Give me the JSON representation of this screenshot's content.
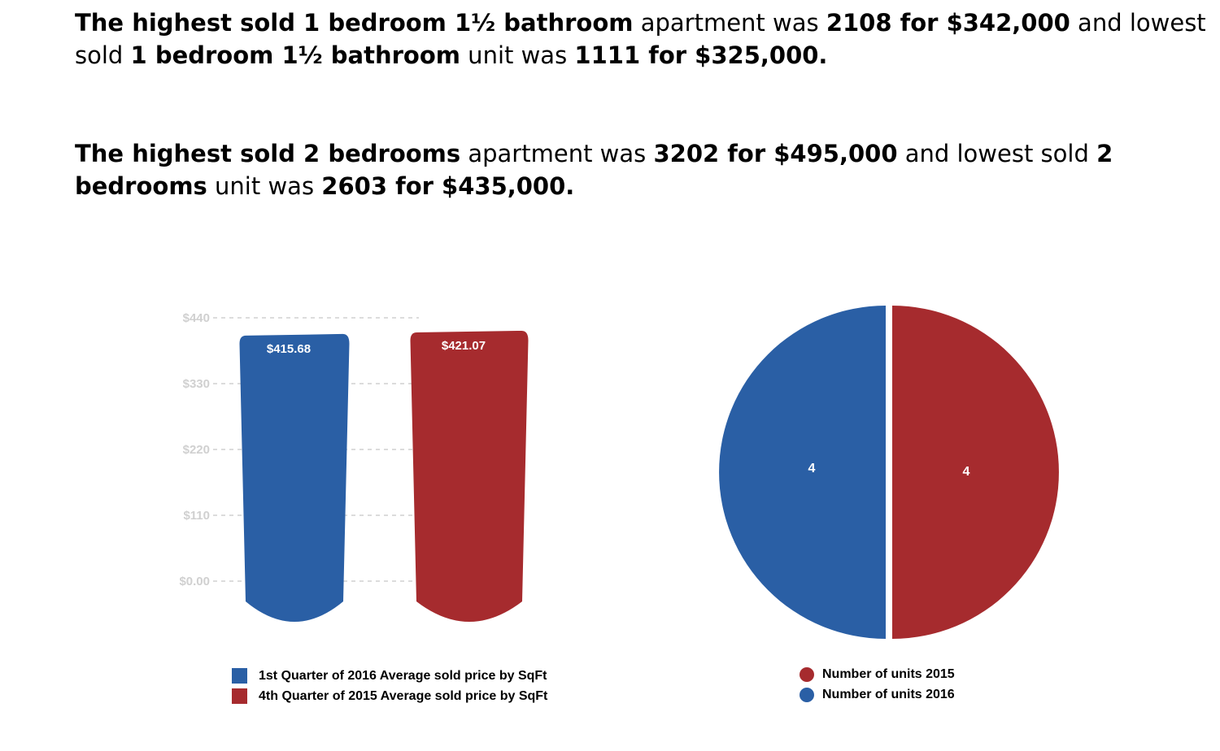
{
  "text": {
    "p1": {
      "a": "The highest sold 1 bedroom 1½ bathroom",
      "b": " apartment was ",
      "c": "2108 for $342,000",
      "d": " and lowest sold ",
      "e": "1 bedroom 1½ bathroom",
      "f": " unit was ",
      "g": "1111 for $325,000."
    },
    "p2": {
      "a": "The highest sold 2 bedrooms",
      "b": " apartment was ",
      "c": "3202 for $495,000",
      "d": " and lowest sold ",
      "e": "2 bedrooms",
      "f": " unit was ",
      "g": "2603 for $435,000."
    }
  },
  "colors": {
    "blue": "#2a5fa5",
    "red": "#a62b2e",
    "grid": "#d0d0d0"
  },
  "chart_data": [
    {
      "type": "bar",
      "categories": [
        "1st Quarter of 2016 Average sold price by SqFt",
        "4th Quarter of 2015 Average sold price by SqFt"
      ],
      "values": [
        415.68,
        421.07
      ],
      "value_labels": [
        "$415.68",
        "$421.07"
      ],
      "yticks": [
        0,
        110,
        220,
        330,
        440
      ],
      "ytick_labels": [
        "$0.00",
        "$110",
        "$220",
        "$330",
        "$440"
      ],
      "ylim": [
        0,
        440
      ],
      "grid": true,
      "legend": [
        {
          "label": "1st Quarter of 2016 Average sold price by SqFt",
          "color": "#2a5fa5"
        },
        {
          "label": "4th Quarter of 2015 Average sold price by SqFt",
          "color": "#a62b2e"
        }
      ]
    },
    {
      "type": "pie",
      "slices": [
        {
          "label": "Number of units 2016",
          "value": 4,
          "color": "#2a5fa5"
        },
        {
          "label": "Number of units 2015",
          "value": 4,
          "color": "#a62b2e"
        }
      ],
      "legend": [
        {
          "label": "Number of units 2015",
          "color": "#a62b2e"
        },
        {
          "label": "Number of units 2016",
          "color": "#2a5fa5"
        }
      ]
    }
  ]
}
